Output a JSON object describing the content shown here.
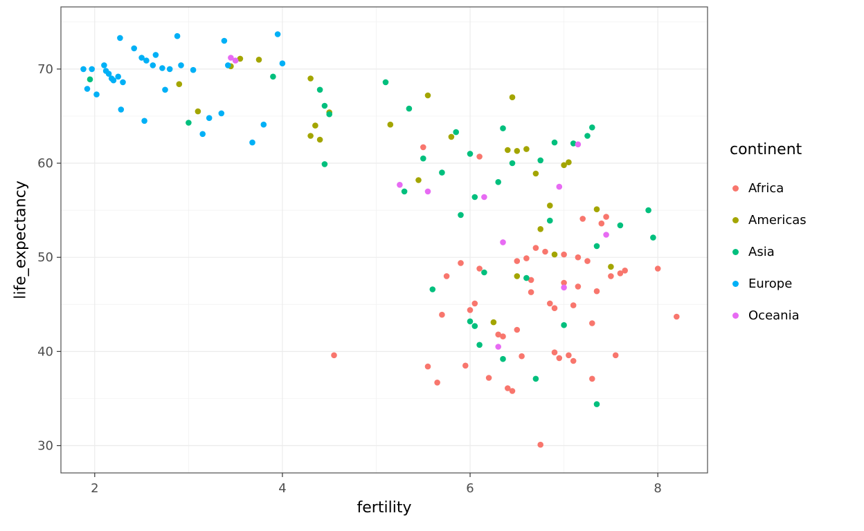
{
  "figure": {
    "background": "#FFFFFF"
  },
  "chart_data": {
    "type": "scatter",
    "title": "",
    "xlabel": "fertility",
    "ylabel": "life_expectancy",
    "legend_title": "continent",
    "legend_position": "right",
    "grid": true,
    "xlim": [
      1.64,
      8.53
    ],
    "ylim": [
      27.1,
      76.6
    ],
    "x_ticks": [
      2,
      4,
      6,
      8
    ],
    "y_ticks": [
      30,
      40,
      50,
      60,
      70
    ],
    "x_minor_ticks": [
      3,
      5,
      7
    ],
    "y_minor_ticks": [
      35,
      45,
      55,
      65,
      75
    ],
    "panel_background": "#FFFFFF",
    "grid_major_color": "#EBEBEB",
    "grid_minor_color": "#F0F0F0",
    "panel_border_color": "#4D4D4D",
    "tick_mark_color": "#333333",
    "tick_label_color": "#4D4D4D",
    "point_radius": 4.3,
    "series": [
      {
        "name": "Africa",
        "color": "#F8766D",
        "points": [
          [
            4.55,
            39.6
          ],
          [
            5.5,
            61.7
          ],
          [
            5.55,
            38.4
          ],
          [
            5.65,
            36.7
          ],
          [
            5.7,
            43.9
          ],
          [
            5.75,
            48.0
          ],
          [
            5.9,
            49.4
          ],
          [
            5.95,
            38.5
          ],
          [
            6.0,
            44.4
          ],
          [
            6.05,
            45.1
          ],
          [
            6.1,
            60.7
          ],
          [
            6.1,
            48.8
          ],
          [
            6.2,
            37.2
          ],
          [
            6.3,
            41.8
          ],
          [
            6.35,
            41.6
          ],
          [
            6.4,
            36.1
          ],
          [
            6.45,
            35.8
          ],
          [
            6.5,
            49.6
          ],
          [
            6.5,
            42.3
          ],
          [
            6.55,
            39.5
          ],
          [
            6.6,
            49.9
          ],
          [
            6.65,
            47.6
          ],
          [
            6.65,
            46.3
          ],
          [
            6.7,
            51.0
          ],
          [
            6.75,
            30.1
          ],
          [
            6.8,
            50.6
          ],
          [
            6.85,
            45.1
          ],
          [
            6.9,
            44.6
          ],
          [
            6.9,
            39.9
          ],
          [
            6.95,
            39.3
          ],
          [
            7.0,
            50.3
          ],
          [
            7.0,
            47.3
          ],
          [
            7.05,
            39.6
          ],
          [
            7.1,
            44.9
          ],
          [
            7.1,
            39.0
          ],
          [
            7.15,
            50.0
          ],
          [
            7.15,
            46.9
          ],
          [
            7.2,
            54.1
          ],
          [
            7.25,
            49.6
          ],
          [
            7.3,
            43.0
          ],
          [
            7.3,
            37.1
          ],
          [
            7.35,
            46.4
          ],
          [
            7.4,
            53.6
          ],
          [
            7.45,
            54.3
          ],
          [
            7.5,
            48.0
          ],
          [
            7.55,
            39.6
          ],
          [
            7.6,
            48.3
          ],
          [
            7.65,
            48.6
          ],
          [
            8.0,
            48.8
          ],
          [
            8.2,
            43.7
          ]
        ]
      },
      {
        "name": "Americas",
        "color": "#A3A500",
        "points": [
          [
            2.9,
            68.4
          ],
          [
            3.1,
            65.5
          ],
          [
            3.45,
            70.3
          ],
          [
            3.55,
            71.1
          ],
          [
            3.75,
            71.0
          ],
          [
            4.3,
            69.0
          ],
          [
            4.3,
            62.9
          ],
          [
            4.35,
            64.0
          ],
          [
            4.4,
            62.5
          ],
          [
            4.5,
            65.4
          ],
          [
            5.15,
            64.1
          ],
          [
            5.45,
            58.2
          ],
          [
            5.55,
            67.2
          ],
          [
            5.8,
            62.8
          ],
          [
            6.25,
            43.1
          ],
          [
            6.4,
            61.4
          ],
          [
            6.45,
            67.0
          ],
          [
            6.5,
            61.3
          ],
          [
            6.5,
            48.0
          ],
          [
            6.6,
            61.5
          ],
          [
            6.7,
            58.9
          ],
          [
            6.75,
            53.0
          ],
          [
            6.85,
            55.5
          ],
          [
            6.9,
            50.3
          ],
          [
            7.0,
            59.8
          ],
          [
            7.05,
            60.1
          ],
          [
            7.35,
            55.1
          ],
          [
            7.5,
            49.0
          ]
        ]
      },
      {
        "name": "Asia",
        "color": "#00BF7D",
        "points": [
          [
            1.95,
            68.9
          ],
          [
            3.0,
            64.3
          ],
          [
            3.9,
            69.2
          ],
          [
            4.4,
            67.8
          ],
          [
            4.45,
            66.1
          ],
          [
            4.45,
            59.9
          ],
          [
            4.5,
            65.2
          ],
          [
            5.1,
            68.6
          ],
          [
            5.3,
            57.0
          ],
          [
            5.35,
            65.8
          ],
          [
            5.5,
            60.5
          ],
          [
            5.6,
            46.6
          ],
          [
            5.7,
            59.0
          ],
          [
            5.85,
            63.3
          ],
          [
            5.9,
            54.5
          ],
          [
            6.0,
            61.0
          ],
          [
            6.0,
            43.2
          ],
          [
            6.05,
            56.4
          ],
          [
            6.05,
            42.7
          ],
          [
            6.1,
            40.7
          ],
          [
            6.15,
            48.4
          ],
          [
            6.3,
            58.0
          ],
          [
            6.35,
            63.7
          ],
          [
            6.35,
            39.2
          ],
          [
            6.45,
            60.0
          ],
          [
            6.6,
            47.8
          ],
          [
            6.7,
            37.1
          ],
          [
            6.75,
            60.3
          ],
          [
            6.85,
            53.9
          ],
          [
            6.9,
            62.2
          ],
          [
            7.0,
            42.8
          ],
          [
            7.1,
            62.1
          ],
          [
            7.25,
            62.9
          ],
          [
            7.3,
            63.8
          ],
          [
            7.35,
            51.2
          ],
          [
            7.35,
            34.4
          ],
          [
            7.6,
            53.4
          ],
          [
            7.9,
            55.0
          ],
          [
            7.95,
            52.1
          ]
        ]
      },
      {
        "name": "Europe",
        "color": "#00B0F6",
        "points": [
          [
            1.88,
            70.0
          ],
          [
            1.97,
            70.0
          ],
          [
            1.92,
            67.9
          ],
          [
            2.02,
            67.3
          ],
          [
            2.1,
            70.4
          ],
          [
            2.12,
            69.8
          ],
          [
            2.15,
            69.5
          ],
          [
            2.18,
            69.0
          ],
          [
            2.2,
            68.8
          ],
          [
            2.25,
            69.2
          ],
          [
            2.27,
            73.3
          ],
          [
            2.3,
            68.6
          ],
          [
            2.28,
            65.7
          ],
          [
            2.42,
            72.2
          ],
          [
            2.5,
            71.2
          ],
          [
            2.55,
            70.9
          ],
          [
            2.53,
            64.5
          ],
          [
            2.62,
            70.4
          ],
          [
            2.65,
            71.5
          ],
          [
            2.72,
            70.1
          ],
          [
            2.75,
            67.8
          ],
          [
            2.8,
            70.0
          ],
          [
            2.88,
            73.5
          ],
          [
            2.92,
            70.4
          ],
          [
            3.05,
            69.9
          ],
          [
            3.15,
            63.1
          ],
          [
            3.22,
            64.8
          ],
          [
            3.35,
            65.3
          ],
          [
            3.38,
            73.0
          ],
          [
            3.42,
            70.4
          ],
          [
            3.68,
            62.2
          ],
          [
            3.8,
            64.1
          ],
          [
            3.95,
            73.7
          ],
          [
            4.0,
            70.6
          ]
        ]
      },
      {
        "name": "Oceania",
        "color": "#E76BF3",
        "points": [
          [
            3.45,
            71.2
          ],
          [
            3.5,
            70.9
          ],
          [
            5.25,
            57.7
          ],
          [
            5.55,
            57.0
          ],
          [
            6.15,
            56.4
          ],
          [
            6.3,
            40.5
          ],
          [
            6.35,
            51.6
          ],
          [
            6.95,
            57.5
          ],
          [
            7.0,
            46.8
          ],
          [
            7.15,
            62.0
          ],
          [
            7.45,
            52.4
          ]
        ]
      }
    ]
  }
}
